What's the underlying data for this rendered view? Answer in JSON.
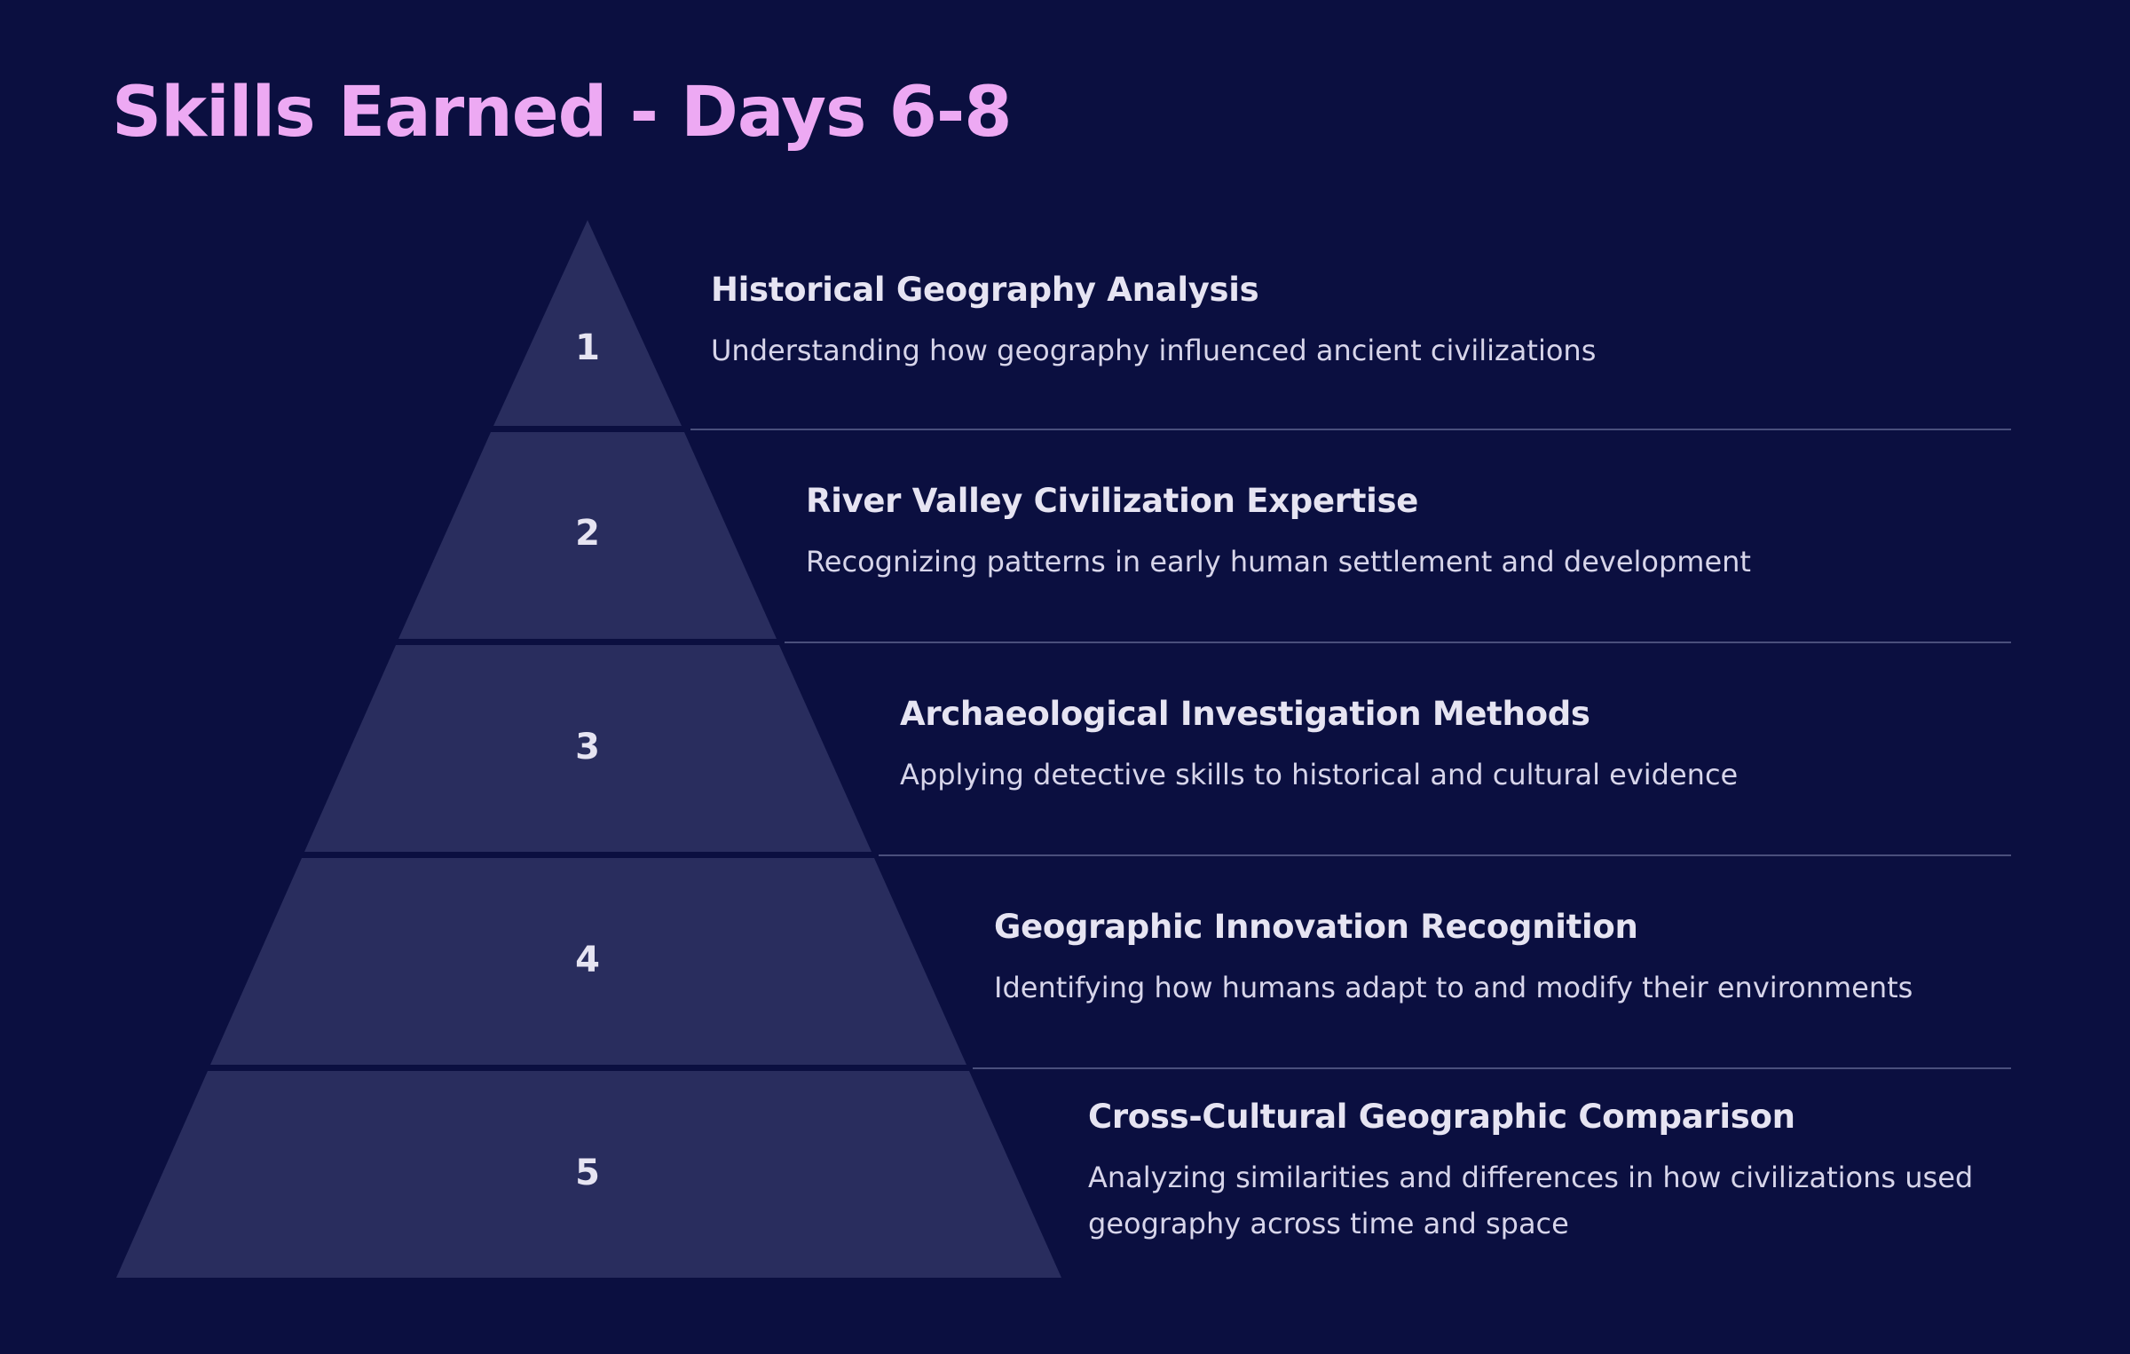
{
  "title": "Skills Earned - Days 6-8",
  "colors": {
    "background": "#0b0f40",
    "title": "#eda9f3",
    "tier_fill": "#292d5e",
    "text": "#e6e4f2",
    "divider": "#4a4f7c"
  },
  "tiers": [
    {
      "number": "1",
      "title": "Historical Geography Analysis",
      "description": "Understanding how geography influenced ancient civilizations"
    },
    {
      "number": "2",
      "title": "River Valley Civilization Expertise",
      "description": "Recognizing patterns in early human settlement and development"
    },
    {
      "number": "3",
      "title": "Archaeological Investigation Methods",
      "description": "Applying detective skills to historical and cultural evidence"
    },
    {
      "number": "4",
      "title": "Geographic Innovation Recognition",
      "description": "Identifying how humans adapt to and modify their environments"
    },
    {
      "number": "5",
      "title": "Cross-Cultural Geographic Comparison",
      "description": "Analyzing similarities and differences in how civilizations used geography across time and space"
    }
  ]
}
